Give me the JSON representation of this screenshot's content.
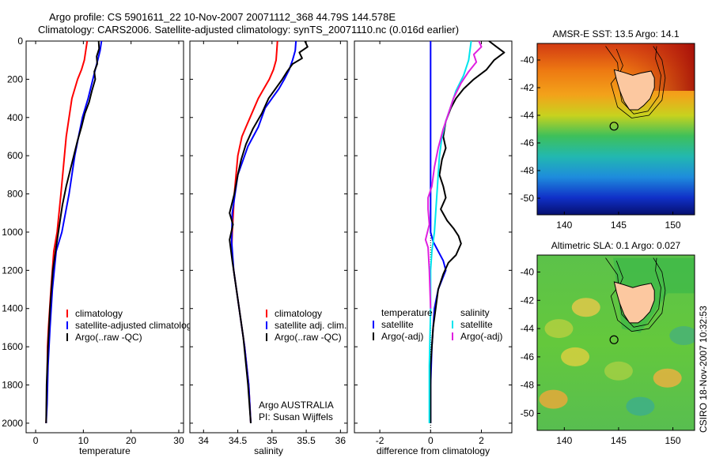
{
  "header": {
    "line1": "Argo profile: CS 5901611_22 10-Nov-2007 20071112_368 44.79S 144.578E",
    "line2": "Climatology: CARS2006. Satellite-adjusted climatology: synTS_20071110.nc (0.016d earlier)"
  },
  "credit": "CSIRO 18-Nov-2007 10:32:53",
  "colors": {
    "red": "#ff0000",
    "blue": "#0000ff",
    "black": "#000000",
    "cyan": "#00e5ee",
    "magenta": "#e020e0"
  },
  "chart_data": [
    {
      "type": "line",
      "id": "temperature",
      "xlabel": "temperature",
      "ylabel": "",
      "xlim": [
        -2,
        31
      ],
      "ylim": [
        0,
        2050
      ],
      "y_reversed": true,
      "xticks": [
        0,
        10,
        20,
        30
      ],
      "yticks": [
        0,
        200,
        400,
        600,
        800,
        1000,
        1200,
        1400,
        1600,
        1800,
        2000
      ],
      "legend_placement": "lower-middle",
      "series": [
        {
          "name": "climatology",
          "color": "red",
          "x": [
            10.8,
            10.5,
            10.2,
            9.6,
            8.8,
            7.6,
            6.4,
            5.3,
            4.5,
            3.8,
            3.2,
            2.7,
            2.5,
            2.4,
            2.3,
            2.2
          ],
          "y": [
            0,
            50,
            100,
            150,
            200,
            300,
            500,
            800,
            1000,
            1100,
            1300,
            1500,
            1600,
            1800,
            1900,
            2000
          ]
        },
        {
          "name": "satellite-adjusted climatology",
          "color": "blue",
          "x": [
            13.8,
            13.5,
            13.0,
            12.5,
            12.0,
            11.0,
            9.8,
            9.0,
            8.2,
            7.0,
            5.5,
            4.3,
            3.5,
            3.0,
            2.6,
            2.4,
            2.2
          ],
          "y": [
            0,
            50,
            100,
            150,
            200,
            300,
            400,
            500,
            600,
            800,
            1000,
            1100,
            1300,
            1500,
            1700,
            1900,
            2000
          ]
        },
        {
          "name": "Argo(..raw -QC)",
          "color": "black",
          "x": [
            13.2,
            13.3,
            12.8,
            12.9,
            12.3,
            12.5,
            11.8,
            11.2,
            10.3,
            9.6,
            8.8,
            8.0,
            7.2,
            6.4,
            5.6,
            5.0,
            4.4,
            3.6,
            3.0,
            2.6,
            2.3,
            2.2
          ],
          "y": [
            0,
            40,
            80,
            120,
            160,
            200,
            260,
            320,
            380,
            450,
            520,
            600,
            680,
            760,
            860,
            960,
            1060,
            1200,
            1400,
            1600,
            1800,
            2000
          ]
        }
      ]
    },
    {
      "type": "line",
      "id": "salinity",
      "xlabel": "salinity",
      "ylabel": "",
      "xlim": [
        33.8,
        36.1
      ],
      "ylim": [
        0,
        2050
      ],
      "y_reversed": true,
      "xticks": [
        34,
        34.5,
        35,
        35.5,
        36
      ],
      "yticks": [
        0,
        200,
        400,
        600,
        800,
        1000,
        1200,
        1400,
        1600,
        1800,
        2000
      ],
      "legend_placement": "lower-middle",
      "annotation": [
        "Argo AUSTRALIA",
        "PI: Susan Wijffels"
      ],
      "series": [
        {
          "name": "climatology",
          "color": "red",
          "x": [
            35.08,
            35.07,
            35.06,
            35.02,
            34.96,
            34.88,
            34.8,
            34.74,
            34.68,
            34.62,
            34.56,
            34.5,
            34.45,
            34.42,
            34.41,
            34.44,
            34.52,
            34.6,
            34.66,
            34.69
          ],
          "y": [
            0,
            50,
            100,
            150,
            200,
            250,
            300,
            350,
            400,
            450,
            500,
            600,
            800,
            1000,
            1100,
            1200,
            1400,
            1600,
            1800,
            2000
          ]
        },
        {
          "name": "satellite adj. clim.",
          "color": "blue",
          "x": [
            35.35,
            35.34,
            35.3,
            35.25,
            35.18,
            35.1,
            35.0,
            34.9,
            34.8,
            34.65,
            34.5,
            34.42,
            34.41,
            34.44,
            34.52,
            34.6,
            34.66,
            34.69
          ],
          "y": [
            0,
            50,
            100,
            150,
            200,
            250,
            300,
            350,
            450,
            550,
            700,
            900,
            1050,
            1200,
            1400,
            1600,
            1800,
            2000
          ]
        },
        {
          "name": "Argo(..raw -QC)",
          "color": "black",
          "x": [
            35.48,
            35.52,
            35.4,
            35.44,
            35.3,
            35.22,
            35.15,
            35.05,
            34.95,
            34.85,
            34.72,
            34.62,
            34.55,
            34.5,
            34.45,
            34.38,
            34.43,
            34.38,
            34.42,
            34.5,
            34.58,
            34.65,
            34.69
          ],
          "y": [
            0,
            30,
            60,
            90,
            120,
            160,
            200,
            250,
            300,
            380,
            460,
            540,
            620,
            700,
            800,
            900,
            960,
            1040,
            1150,
            1350,
            1550,
            1800,
            2000
          ]
        }
      ]
    },
    {
      "type": "line",
      "id": "difference",
      "xlabel": "difference from climatology",
      "ylabel": "",
      "xlim": [
        -3,
        3.2
      ],
      "ylim": [
        0,
        2050
      ],
      "y_reversed": true,
      "xticks": [
        -2,
        0,
        2
      ],
      "yticks": [
        0,
        200,
        400,
        600,
        800,
        1000,
        1200,
        1400,
        1600,
        1800,
        2000
      ],
      "zero_line": "dotted",
      "legend_placement": "lower-middle",
      "legend_headers": [
        "temperature",
        "salinity"
      ],
      "series": [
        {
          "name": "satellite",
          "group": "temperature",
          "color": "blue",
          "x": [
            0.0,
            0.0,
            0.0,
            0.0,
            0.0,
            0.0,
            0.0,
            0.0,
            0.0,
            0.1,
            0.3,
            0.5,
            0.6,
            0.3,
            0.15,
            0.05,
            0.0,
            0.0
          ],
          "y": [
            0,
            200,
            400,
            500,
            600,
            700,
            800,
            900,
            1000,
            1050,
            1100,
            1150,
            1200,
            1300,
            1400,
            1600,
            1800,
            2000
          ]
        },
        {
          "name": "Argo(-adj)",
          "group": "temperature",
          "color": "black",
          "x": [
            2.3,
            2.6,
            2.9,
            2.5,
            2.2,
            1.7,
            1.3,
            1.0,
            0.8,
            0.6,
            0.5,
            0.6,
            0.45,
            0.35,
            0.5,
            0.6,
            0.4,
            0.65,
            0.9,
            1.1,
            1.2,
            1.0,
            0.7,
            0.5,
            0.3,
            0.1,
            0.0,
            0.0
          ],
          "y": [
            0,
            30,
            60,
            100,
            150,
            200,
            250,
            300,
            350,
            420,
            500,
            560,
            620,
            700,
            760,
            820,
            880,
            940,
            980,
            1020,
            1060,
            1120,
            1160,
            1220,
            1300,
            1500,
            1700,
            2000
          ]
        },
        {
          "name": "satellite",
          "group": "salinity",
          "color": "cyan",
          "x": [
            1.6,
            1.5,
            1.3,
            1.0,
            0.8,
            0.6,
            0.45,
            0.35,
            0.3,
            0.25,
            0.2,
            0.15,
            0.05,
            0.0,
            0.0,
            -0.05,
            -0.05
          ],
          "y": [
            0,
            100,
            180,
            260,
            340,
            420,
            500,
            600,
            700,
            800,
            900,
            1000,
            1100,
            1200,
            1400,
            1700,
            2000
          ]
        },
        {
          "name": "Argo(-adj)",
          "group": "salinity",
          "color": "magenta",
          "x": [
            1.9,
            2.0,
            1.7,
            1.8,
            1.5,
            1.2,
            0.9,
            0.7,
            0.5,
            0.3,
            0.15,
            0.05,
            -0.1,
            -0.1,
            -0.05,
            -0.2,
            -0.1,
            -0.05,
            0.0
          ],
          "y": [
            0,
            30,
            70,
            110,
            160,
            220,
            300,
            380,
            460,
            560,
            660,
            760,
            820,
            880,
            960,
            1040,
            1080,
            1200,
            1400
          ]
        }
      ]
    },
    {
      "type": "heatmap",
      "id": "sst-map",
      "title": "AMSR-E SST: 13.5 Argo: 14.1",
      "xlim": [
        137.5,
        152
      ],
      "ylim": [
        -51.2,
        -38.8
      ],
      "xticks": [
        140,
        145,
        150
      ],
      "yticks": [
        -40,
        -42,
        -44,
        -46,
        -48,
        -50
      ],
      "marker": {
        "lon": 144.578,
        "lat": -44.79
      }
    },
    {
      "type": "heatmap",
      "id": "sla-map",
      "title": "Altimetric SLA: 0.1 Argo: 0.027",
      "xlim": [
        137.5,
        152
      ],
      "ylim": [
        -51.2,
        -38.8
      ],
      "xticks": [
        140,
        145,
        150
      ],
      "yticks": [
        -40,
        -42,
        -44,
        -46,
        -48,
        -50
      ],
      "marker": {
        "lon": 144.578,
        "lat": -44.79
      }
    }
  ]
}
